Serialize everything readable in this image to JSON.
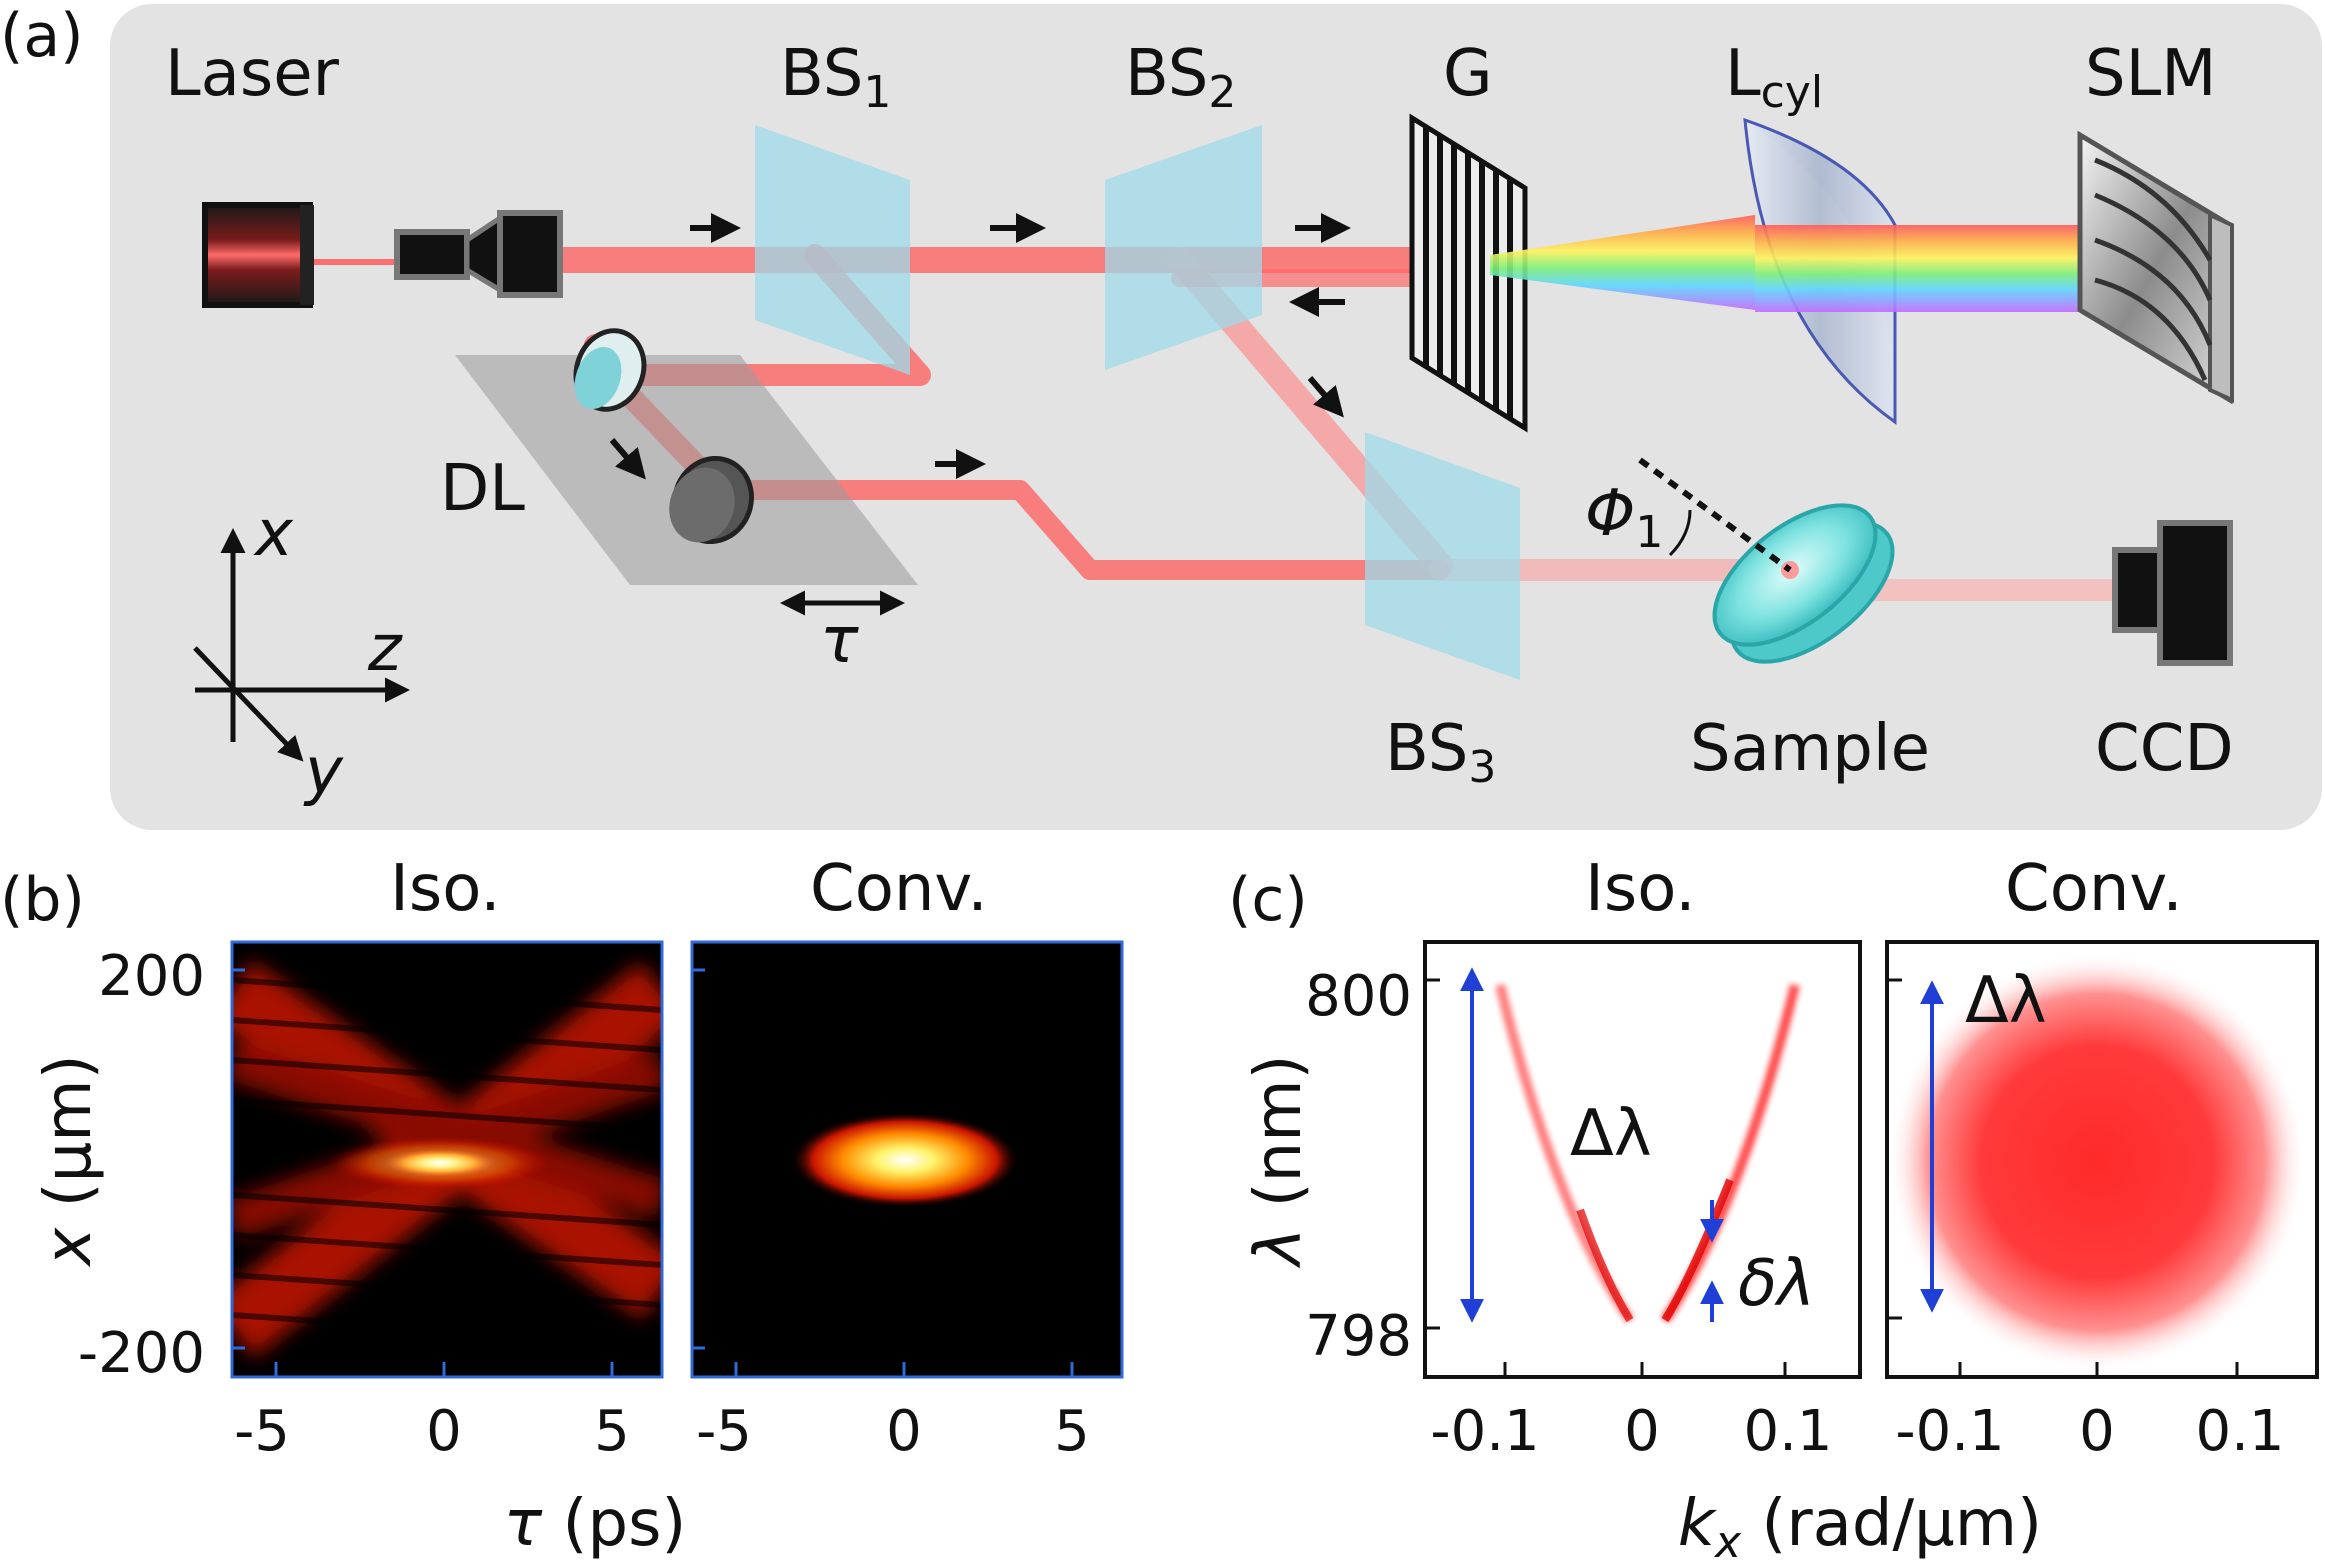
{
  "panels": {
    "a": "(a)",
    "b": "(b)",
    "c": "(c)"
  },
  "setup": {
    "laser": "Laser",
    "bs1": "BS",
    "bs1_sub": "1",
    "bs2": "BS",
    "bs2_sub": "2",
    "bs3": "BS",
    "bs3_sub": "3",
    "grating": "G",
    "lens": "L",
    "lens_sub": "cyl",
    "slm": "SLM",
    "delay_line": "DL",
    "tau": "τ",
    "sample": "Sample",
    "ccd": "CCD",
    "phi": "Φ",
    "phi_sub": "1",
    "axes": {
      "x": "x",
      "y": "y",
      "z": "z"
    }
  },
  "panel_b": {
    "titles": [
      "Iso.",
      "Conv."
    ],
    "ylabel_var": "x",
    "ylabel_unit": " (μm)",
    "xlabel_var": "τ",
    "xlabel_unit": " (ps)",
    "yticks": [
      "200",
      "-200"
    ],
    "xticks": [
      "-5",
      "0",
      "5"
    ]
  },
  "panel_c": {
    "titles": [
      "Iso.",
      "Conv."
    ],
    "ylabel_var": "λ",
    "ylabel_unit": " (nm)",
    "xlabel_var": "k",
    "xlabel_sub": "x",
    "xlabel_unit": " (rad/μm)",
    "yticks": [
      "800",
      "798"
    ],
    "xticks": [
      "-0.1",
      "0",
      "0.1"
    ],
    "annot_delta": "Δλ",
    "annot_small": "δλ"
  },
  "chart_data": [
    {
      "type": "heatmap",
      "title": "Iso.",
      "xlabel": "τ (ps)",
      "ylabel": "x (μm)",
      "xlim": [
        -6.5,
        6.5
      ],
      "ylim": [
        -230,
        230
      ],
      "x_ticks": [
        -5,
        0,
        5
      ],
      "y_ticks": [
        200,
        -200
      ],
      "colormap": "hot",
      "features": [
        "X-shaped intensity pattern with bright peak at τ=0, x≈0"
      ]
    },
    {
      "type": "heatmap",
      "title": "Conv.",
      "xlabel": "τ (ps)",
      "xlim": [
        -6.5,
        6.5
      ],
      "ylim": [
        -230,
        230
      ],
      "x_ticks": [
        -5,
        0,
        5
      ],
      "colormap": "hot",
      "features": [
        "single localized elliptical spot at τ=0, x≈0"
      ]
    },
    {
      "type": "heatmap",
      "title": "Iso.",
      "xlabel": "kx (rad/μm)",
      "ylabel": "λ (nm)",
      "xlim": [
        -0.14,
        0.14
      ],
      "ylim": [
        797.8,
        800.1
      ],
      "x_ticks": [
        -0.1,
        0,
        0.1
      ],
      "y_ticks": [
        800,
        798
      ],
      "features": [
        "parabolic spectral band λ(kx), vertex near 798 nm at kx=0"
      ]
    },
    {
      "type": "heatmap",
      "title": "Conv.",
      "xlabel": "kx (rad/μm)",
      "xlim": [
        -0.14,
        0.14
      ],
      "ylim": [
        797.8,
        800.1
      ],
      "x_ticks": [
        -0.1,
        0,
        0.1
      ],
      "features": [
        "broad circular spectral spot centered at kx=0"
      ]
    }
  ]
}
